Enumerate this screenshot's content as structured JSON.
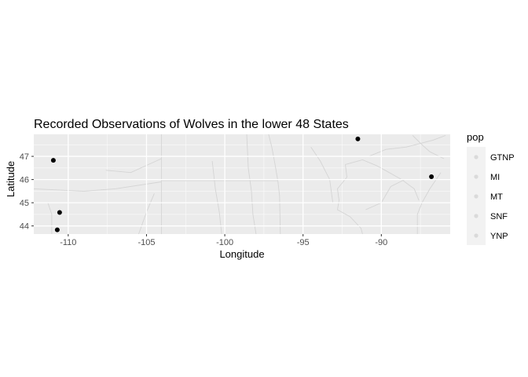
{
  "chart_data": {
    "type": "scatter",
    "title": "Recorded Observations of Wolves in the lower 48 States",
    "xlabel": "Longitude",
    "ylabel": "Latitude",
    "xlim": [
      -112.2,
      -85.6
    ],
    "ylim": [
      43.65,
      47.95
    ],
    "x_ticks": [
      -110,
      -105,
      -100,
      -95,
      -90
    ],
    "y_ticks": [
      44,
      45,
      46,
      47
    ],
    "grid": true,
    "background_map": true,
    "point_color": "#000000",
    "points": [
      {
        "x": -110.95,
        "y": 46.83
      },
      {
        "x": -110.55,
        "y": 44.58
      },
      {
        "x": -110.7,
        "y": 43.83
      },
      {
        "x": -91.5,
        "y": 47.75
      },
      {
        "x": -86.8,
        "y": 46.12
      }
    ],
    "legend": {
      "title": "pop",
      "position": "right",
      "entries": [
        "GTNP",
        "MI",
        "MT",
        "SNF",
        "YNP"
      ]
    }
  },
  "colors": {
    "panel": "#ebebeb",
    "grid_major": "#ffffff",
    "map_lines": "#d4d4d4"
  }
}
